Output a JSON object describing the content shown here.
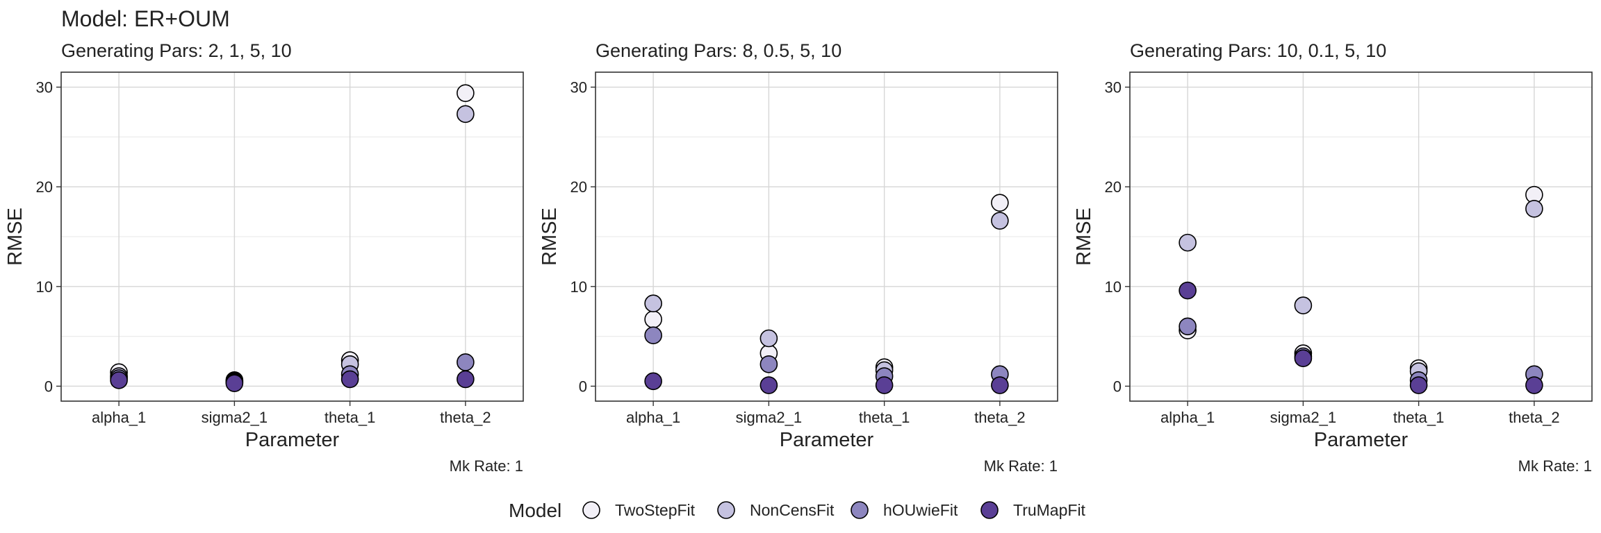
{
  "title": "Model: ER+OUM",
  "legend": {
    "title": "Model",
    "entries": [
      {
        "label": "TwoStepFit",
        "color": "#f2f0f7"
      },
      {
        "label": "NonCensFit",
        "color": "#c5c2e0"
      },
      {
        "label": "hOUwieFit",
        "color": "#8d86bf"
      },
      {
        "label": "TruMapFit",
        "color": "#5a3f95"
      }
    ]
  },
  "chart_data": [
    {
      "type": "scatter",
      "subtitle": "Generating Pars: 2, 1, 5, 10",
      "xlabel": "Parameter",
      "ylabel": "RMSE",
      "caption": "Mk Rate: 1",
      "categories": [
        "alpha_1",
        "sigma2_1",
        "theta_1",
        "theta_2"
      ],
      "ylim": [
        -1.5,
        31.5
      ],
      "yticks": [
        0,
        10,
        20,
        30
      ],
      "grid": true,
      "series": [
        {
          "name": "TwoStepFit",
          "values": [
            1.4,
            0.6,
            2.6,
            29.4
          ]
        },
        {
          "name": "NonCensFit",
          "values": [
            1.0,
            0.5,
            2.2,
            27.3
          ]
        },
        {
          "name": "hOUwieFit",
          "values": [
            0.8,
            0.4,
            1.2,
            2.4
          ]
        },
        {
          "name": "TruMapFit",
          "values": [
            0.6,
            0.3,
            0.7,
            0.7
          ]
        }
      ]
    },
    {
      "type": "scatter",
      "subtitle": "Generating Pars: 8, 0.5, 5, 10",
      "xlabel": "Parameter",
      "ylabel": "RMSE",
      "caption": "Mk Rate: 1",
      "categories": [
        "alpha_1",
        "sigma2_1",
        "theta_1",
        "theta_2"
      ],
      "ylim": [
        -1.5,
        31.5
      ],
      "yticks": [
        0,
        10,
        20,
        30
      ],
      "grid": true,
      "series": [
        {
          "name": "TwoStepFit",
          "values": [
            6.7,
            3.3,
            1.9,
            18.4
          ]
        },
        {
          "name": "NonCensFit",
          "values": [
            8.3,
            4.8,
            1.6,
            16.6
          ]
        },
        {
          "name": "hOUwieFit",
          "values": [
            5.1,
            2.2,
            1.0,
            1.2
          ]
        },
        {
          "name": "TruMapFit",
          "values": [
            0.5,
            0.1,
            0.1,
            0.1
          ]
        }
      ]
    },
    {
      "type": "scatter",
      "subtitle": "Generating Pars: 10, 0.1, 5, 10",
      "xlabel": "Parameter",
      "ylabel": "RMSE",
      "caption": "Mk Rate: 1",
      "categories": [
        "alpha_1",
        "sigma2_1",
        "theta_1",
        "theta_2"
      ],
      "ylim": [
        -1.5,
        31.5
      ],
      "yticks": [
        0,
        10,
        20,
        30
      ],
      "grid": true,
      "series": [
        {
          "name": "TwoStepFit",
          "values": [
            5.6,
            3.3,
            1.8,
            19.2
          ]
        },
        {
          "name": "NonCensFit",
          "values": [
            14.4,
            8.1,
            1.5,
            17.8
          ]
        },
        {
          "name": "hOUwieFit",
          "values": [
            6.0,
            3.0,
            0.6,
            1.2
          ]
        },
        {
          "name": "TruMapFit",
          "values": [
            9.6,
            2.8,
            0.1,
            0.1
          ]
        }
      ]
    }
  ]
}
